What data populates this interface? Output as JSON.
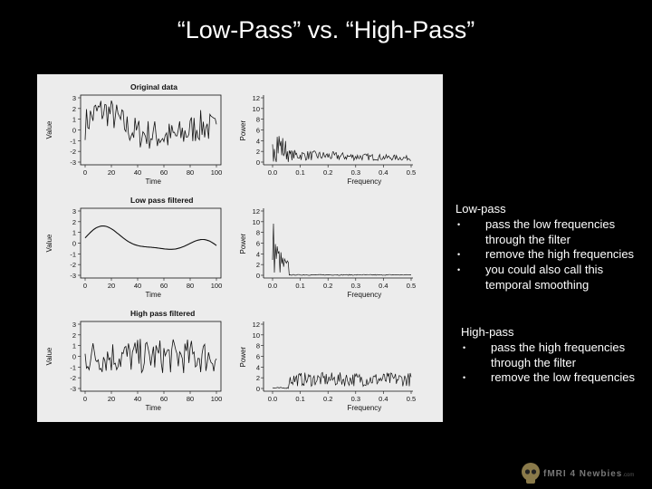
{
  "slide_title": "“Low-Pass” vs. “High-Pass”",
  "figure": {
    "panels": [
      {
        "title": "Original data",
        "time_ylabel": "Value",
        "time_xlabel": "Time",
        "freq_ylabel": "Power",
        "freq_xlabel": "Frequency"
      },
      {
        "title": "Low pass filtered",
        "time_ylabel": "Value",
        "time_xlabel": "Time",
        "freq_ylabel": "Power",
        "freq_xlabel": "Frequency"
      },
      {
        "title": "High pass filtered",
        "time_ylabel": "Value",
        "time_xlabel": "Time",
        "freq_ylabel": "Power",
        "freq_xlabel": "Frequency"
      }
    ],
    "time_xticks": [
      "0",
      "20",
      "40",
      "60",
      "80",
      "100"
    ],
    "time_yticks": [
      "3",
      "2",
      "1",
      "0",
      "-1",
      "-2",
      "-3"
    ],
    "freq_xticks": [
      "0.0",
      "0.1",
      "0.2",
      "0.3",
      "0.4",
      "0.5"
    ],
    "freq_yticks": [
      "12",
      "10",
      "8",
      "6",
      "4",
      "2",
      "0"
    ]
  },
  "chart_data": [
    {
      "type": "line",
      "title": "Original data",
      "xlabel": "Time",
      "ylabel": "Value",
      "xlim": [
        0,
        100
      ],
      "ylim": [
        -3,
        3
      ]
    },
    {
      "type": "line",
      "title": "",
      "xlabel": "Frequency",
      "ylabel": "Power",
      "xlim": [
        0,
        0.5
      ],
      "ylim": [
        0,
        12
      ]
    },
    {
      "type": "line",
      "title": "Low pass filtered",
      "xlabel": "Time",
      "ylabel": "Value",
      "xlim": [
        0,
        100
      ],
      "ylim": [
        -3,
        3
      ]
    },
    {
      "type": "line",
      "title": "",
      "xlabel": "Frequency",
      "ylabel": "Power",
      "xlim": [
        0,
        0.5
      ],
      "ylim": [
        0,
        12
      ]
    },
    {
      "type": "line",
      "title": "High pass filtered",
      "xlabel": "Time",
      "ylabel": "Value",
      "xlim": [
        0,
        100
      ],
      "ylim": [
        -3,
        3
      ]
    },
    {
      "type": "line",
      "title": "",
      "xlabel": "Frequency",
      "ylabel": "Power",
      "xlim": [
        0,
        0.5
      ],
      "ylim": [
        0,
        12
      ]
    }
  ],
  "low_pass": {
    "heading": "Low-pass",
    "bullets": [
      "pass the low frequencies through the filter",
      "remove the high frequencies",
      "you could also call this temporal smoothing"
    ]
  },
  "high_pass": {
    "heading": "High-pass",
    "bullets": [
      "pass the high frequencies through the filter",
      "remove the low frequencies"
    ]
  },
  "logo": {
    "text": "fMRI 4 Newbies",
    "suffix": ".com"
  }
}
